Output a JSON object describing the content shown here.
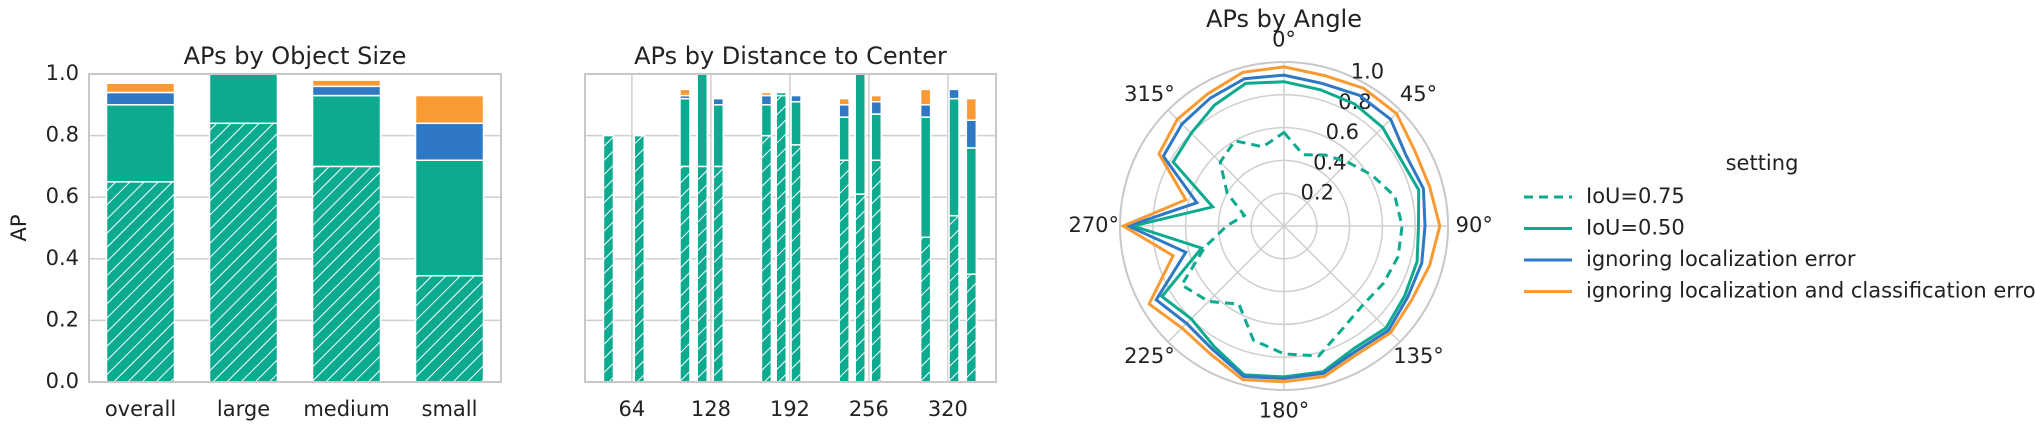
{
  "chart_data": [
    {
      "type": "stacked-bar",
      "title": "APs by Object Size",
      "ylabel": "AP",
      "categories": [
        "overall",
        "large",
        "medium",
        "small"
      ],
      "series": [
        {
          "color": "#0caa8f",
          "hatch": true,
          "values": [
            0.65,
            0.84,
            0.7,
            0.345
          ]
        },
        {
          "color": "#0caa8f",
          "values": [
            0.25,
            0.16,
            0.23,
            0.375
          ]
        },
        {
          "color": "#2f78c4",
          "values": [
            0.04,
            0,
            0.03,
            0.12
          ]
        },
        {
          "color": "#f99a32",
          "values": [
            0.03,
            0,
            0.02,
            0.09
          ]
        }
      ],
      "ylim": [
        0,
        1
      ],
      "yticks": [
        {
          "value": 0,
          "label": "0.0"
        },
        0.2,
        0.4,
        0.6,
        0.8,
        {
          "value": 1,
          "label": "1.0"
        }
      ],
      "grid": true
    },
    {
      "type": "stacked-bar-x",
      "title": "APs by Distance to Center",
      "x": [
        45,
        70,
        107,
        121,
        134,
        173,
        185,
        197,
        236,
        249,
        262,
        302,
        325,
        339
      ],
      "series": [
        {
          "color": "#0caa8f",
          "hatch": true,
          "values": [
            0.8,
            0.8,
            0.7,
            0.7,
            0.7,
            0.8,
            0.93,
            0.77,
            0.72,
            0.61,
            0.72,
            0.47,
            0.54,
            0.35
          ]
        },
        {
          "color": "#0caa8f",
          "values": [
            0,
            0,
            0.22,
            0.3,
            0.2,
            0.1,
            0.01,
            0.14,
            0.14,
            0.39,
            0.15,
            0.39,
            0.38,
            0.41
          ]
        },
        {
          "color": "#2f78c4",
          "values": [
            0,
            0,
            0.01,
            0,
            0.02,
            0.03,
            0,
            0.02,
            0.04,
            0,
            0.04,
            0.04,
            0.03,
            0.09
          ]
        },
        {
          "color": "#f99a32",
          "values": [
            0,
            0,
            0.02,
            0,
            0,
            0.01,
            0,
            0,
            0.02,
            0,
            0.02,
            0.05,
            0,
            0.07
          ]
        }
      ],
      "xlim": [
        26,
        359
      ],
      "xticks": [
        64,
        128,
        192,
        256,
        320
      ],
      "ylim": [
        0,
        1
      ],
      "yticks": [
        0,
        0.2,
        0.4,
        0.6,
        0.8,
        1
      ],
      "grid": true
    },
    {
      "type": "polar-line",
      "title": "APs by Angle",
      "legend_title": "setting",
      "theta": [
        0,
        15,
        30,
        45,
        60,
        75,
        90,
        105,
        120,
        135,
        150,
        165,
        180,
        195,
        210,
        225,
        240,
        255,
        270,
        285,
        300,
        315,
        330,
        345
      ],
      "series": [
        {
          "name": "IoU=0.75",
          "color": "#0caa8f",
          "dashed": true,
          "values": [
            0.57,
            0.45,
            0.5,
            0.55,
            0.62,
            0.7,
            0.72,
            0.72,
            0.7,
            0.68,
            0.72,
            0.82,
            0.78,
            0.72,
            0.55,
            0.65,
            0.72,
            0.5,
            0.35,
            0.25,
            0.4,
            0.55,
            0.6,
            0.5
          ]
        },
        {
          "name": "IoU=0.50",
          "color": "#0caa8f",
          "values": [
            0.88,
            0.86,
            0.86,
            0.85,
            0.82,
            0.85,
            0.82,
            0.84,
            0.85,
            0.88,
            0.86,
            0.92,
            0.92,
            0.94,
            0.85,
            0.8,
            0.86,
            0.52,
            0.92,
            0.45,
            0.78,
            0.8,
            0.85,
            0.9
          ]
        },
        {
          "name": "ignoring localization error",
          "color": "#2f78c4",
          "values": [
            0.92,
            0.9,
            0.92,
            0.92,
            0.86,
            0.88,
            0.86,
            0.87,
            0.87,
            0.9,
            0.88,
            0.93,
            0.93,
            0.95,
            0.87,
            0.84,
            0.9,
            0.62,
            0.95,
            0.55,
            0.85,
            0.88,
            0.9,
            0.93
          ]
        },
        {
          "name": "ignoring localization and classification error",
          "color": "#f99a32",
          "values": [
            0.97,
            0.95,
            0.97,
            0.97,
            0.92,
            0.92,
            0.95,
            0.92,
            0.9,
            0.92,
            0.9,
            0.95,
            0.95,
            0.97,
            0.9,
            0.88,
            0.95,
            0.7,
            0.98,
            0.62,
            0.88,
            0.92,
            0.93,
            0.97
          ]
        }
      ],
      "rlim": [
        0,
        1
      ],
      "rticks": [
        0.2,
        0.4,
        0.6,
        0.8,
        {
          "value": 1,
          "label": "1.0"
        }
      ],
      "thetaticks": [
        {
          "value": 0,
          "label": "0°"
        },
        {
          "value": 45,
          "label": "45°"
        },
        {
          "value": 90,
          "label": "90°"
        },
        {
          "value": 135,
          "label": "135°"
        },
        {
          "value": 180,
          "label": "180°"
        },
        {
          "value": 225,
          "label": "225°"
        },
        {
          "value": 270,
          "label": "270°"
        },
        {
          "value": 315,
          "label": "315°"
        }
      ],
      "grid": true
    }
  ]
}
